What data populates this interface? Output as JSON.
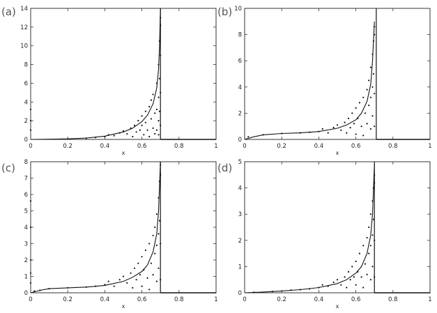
{
  "chart_data": [
    {
      "type": "scatter",
      "panel_label": "(a)",
      "xlabel": "x",
      "ylabel": "",
      "xlim": [
        0,
        1
      ],
      "ylim": [
        0,
        14
      ],
      "x_ticks": [
        "0",
        "0.2",
        "0.4",
        "0.6",
        "0.8",
        "1"
      ],
      "y_ticks": [
        "0",
        "2",
        "4",
        "6",
        "8",
        "10",
        "12",
        "14"
      ],
      "curve": {
        "x": [
          0,
          0.1,
          0.2,
          0.3,
          0.4,
          0.5,
          0.55,
          0.6,
          0.63,
          0.66,
          0.68,
          0.69,
          0.695,
          0.7
        ],
        "y": [
          0,
          0.02,
          0.06,
          0.15,
          0.35,
          0.8,
          1.2,
          1.9,
          2.6,
          3.8,
          5.5,
          7.5,
          10,
          14
        ]
      },
      "scatter_points": [
        [
          0.0,
          3.2
        ],
        [
          0.0,
          2.0
        ],
        [
          0.0,
          1.0
        ],
        [
          0.2,
          0.05
        ],
        [
          0.3,
          0.12
        ],
        [
          0.35,
          0.2
        ],
        [
          0.4,
          0.3
        ],
        [
          0.42,
          0.5
        ],
        [
          0.45,
          0.4
        ],
        [
          0.48,
          0.7
        ],
        [
          0.5,
          0.9
        ],
        [
          0.52,
          0.6
        ],
        [
          0.54,
          1.2
        ],
        [
          0.55,
          0.3
        ],
        [
          0.56,
          1.5
        ],
        [
          0.57,
          0.8
        ],
        [
          0.58,
          2.0
        ],
        [
          0.59,
          1.0
        ],
        [
          0.6,
          2.5
        ],
        [
          0.6,
          1.5
        ],
        [
          0.61,
          0.5
        ],
        [
          0.62,
          3.0
        ],
        [
          0.62,
          1.8
        ],
        [
          0.63,
          1.0
        ],
        [
          0.64,
          3.5
        ],
        [
          0.64,
          0.3
        ],
        [
          0.65,
          2.2
        ],
        [
          0.65,
          4.2
        ],
        [
          0.66,
          1.2
        ],
        [
          0.66,
          4.8
        ],
        [
          0.67,
          2.8
        ],
        [
          0.67,
          0.6
        ],
        [
          0.68,
          6.0
        ],
        [
          0.68,
          3.2
        ],
        [
          0.68,
          1.0
        ],
        [
          0.69,
          8.0
        ],
        [
          0.69,
          4.5
        ],
        [
          0.69,
          2.0
        ],
        [
          0.69,
          0.5
        ],
        [
          0.695,
          10.5
        ],
        [
          0.695,
          6.5
        ],
        [
          0.695,
          3.0
        ],
        [
          0.7,
          13.0
        ],
        [
          0.7,
          12.2
        ],
        [
          0.7,
          9.0
        ],
        [
          0.7,
          5.0
        ],
        [
          0.7,
          1.5
        ]
      ],
      "vertical_line_x": 0.7
    },
    {
      "type": "scatter",
      "panel_label": "(b)",
      "xlabel": "x",
      "ylabel": "",
      "xlim": [
        0,
        1
      ],
      "ylim": [
        0,
        10
      ],
      "x_ticks": [
        "0",
        "0.2",
        "0.4",
        "0.6",
        "0.8",
        "1"
      ],
      "y_ticks": [
        "0",
        "2",
        "4",
        "6",
        "8",
        "10"
      ],
      "curve": {
        "x": [
          0,
          0.05,
          0.1,
          0.2,
          0.3,
          0.4,
          0.5,
          0.55,
          0.6,
          0.63,
          0.66,
          0.68,
          0.69,
          0.7
        ],
        "y": [
          0,
          0.2,
          0.35,
          0.45,
          0.5,
          0.6,
          0.85,
          1.1,
          1.5,
          2.0,
          2.9,
          4.2,
          6.0,
          9.0
        ]
      },
      "scatter_points": [
        [
          0.02,
          0.2
        ],
        [
          0.1,
          0.35
        ],
        [
          0.2,
          0.45
        ],
        [
          0.3,
          0.5
        ],
        [
          0.35,
          0.55
        ],
        [
          0.4,
          0.6
        ],
        [
          0.42,
          0.8
        ],
        [
          0.45,
          0.5
        ],
        [
          0.48,
          0.9
        ],
        [
          0.5,
          1.1
        ],
        [
          0.52,
          0.7
        ],
        [
          0.54,
          1.3
        ],
        [
          0.55,
          0.5
        ],
        [
          0.56,
          1.6
        ],
        [
          0.57,
          0.9
        ],
        [
          0.58,
          2.0
        ],
        [
          0.59,
          1.2
        ],
        [
          0.6,
          2.4
        ],
        [
          0.6,
          0.4
        ],
        [
          0.61,
          1.6
        ],
        [
          0.62,
          2.8
        ],
        [
          0.63,
          1.0
        ],
        [
          0.64,
          3.2
        ],
        [
          0.64,
          0.3
        ],
        [
          0.65,
          2.0
        ],
        [
          0.66,
          3.8
        ],
        [
          0.66,
          1.2
        ],
        [
          0.67,
          4.5
        ],
        [
          0.67,
          2.6
        ],
        [
          0.68,
          5.5
        ],
        [
          0.68,
          3.2
        ],
        [
          0.68,
          0.8
        ],
        [
          0.69,
          6.5
        ],
        [
          0.69,
          4.0
        ],
        [
          0.69,
          1.8
        ],
        [
          0.695,
          7.5
        ],
        [
          0.695,
          5.0
        ],
        [
          0.7,
          8.6
        ],
        [
          0.7,
          8.0
        ],
        [
          0.7,
          3.5
        ],
        [
          0.7,
          1.0
        ]
      ],
      "vertical_line_x": 0.71
    },
    {
      "type": "scatter",
      "panel_label": "(c)",
      "xlabel": "x",
      "ylabel": "",
      "xlim": [
        0,
        1
      ],
      "ylim": [
        0,
        8
      ],
      "x_ticks": [
        "0",
        "0.2",
        "0.4",
        "0.6",
        "0.8",
        "1"
      ],
      "y_ticks": [
        "0",
        "1",
        "2",
        "3",
        "4",
        "5",
        "6",
        "7",
        "8"
      ],
      "curve": {
        "x": [
          0,
          0.05,
          0.1,
          0.2,
          0.3,
          0.4,
          0.5,
          0.55,
          0.6,
          0.63,
          0.66,
          0.68,
          0.69,
          0.7
        ],
        "y": [
          0,
          0.15,
          0.25,
          0.3,
          0.35,
          0.45,
          0.7,
          0.95,
          1.3,
          1.7,
          2.5,
          3.6,
          5.0,
          8.0
        ]
      },
      "scatter_points": [
        [
          0.0,
          5.6
        ],
        [
          0.0,
          4.0
        ],
        [
          0.0,
          2.0
        ],
        [
          0.0,
          1.2
        ],
        [
          0.0,
          0.6
        ],
        [
          0.02,
          0.1
        ],
        [
          0.05,
          0.15
        ],
        [
          0.1,
          0.25
        ],
        [
          0.2,
          0.3
        ],
        [
          0.3,
          0.35
        ],
        [
          0.35,
          0.4
        ],
        [
          0.4,
          0.5
        ],
        [
          0.42,
          0.7
        ],
        [
          0.45,
          0.4
        ],
        [
          0.48,
          0.8
        ],
        [
          0.5,
          1.0
        ],
        [
          0.52,
          0.6
        ],
        [
          0.54,
          1.2
        ],
        [
          0.55,
          0.3
        ],
        [
          0.56,
          1.5
        ],
        [
          0.57,
          0.8
        ],
        [
          0.58,
          1.8
        ],
        [
          0.59,
          1.1
        ],
        [
          0.6,
          2.2
        ],
        [
          0.6,
          0.4
        ],
        [
          0.61,
          1.4
        ],
        [
          0.62,
          2.6
        ],
        [
          0.63,
          0.9
        ],
        [
          0.64,
          3.0
        ],
        [
          0.64,
          0.2
        ],
        [
          0.65,
          1.8
        ],
        [
          0.66,
          3.5
        ],
        [
          0.66,
          1.1
        ],
        [
          0.67,
          4.0
        ],
        [
          0.67,
          2.4
        ],
        [
          0.68,
          4.8
        ],
        [
          0.68,
          2.9
        ],
        [
          0.68,
          0.7
        ],
        [
          0.69,
          5.8
        ],
        [
          0.69,
          3.6
        ],
        [
          0.69,
          1.5
        ],
        [
          0.695,
          6.8
        ],
        [
          0.695,
          4.4
        ],
        [
          0.7,
          7.8
        ],
        [
          0.7,
          7.2
        ],
        [
          0.7,
          3.0
        ],
        [
          0.7,
          0.8
        ]
      ],
      "vertical_line_x": 0.7
    },
    {
      "type": "scatter",
      "panel_label": "(d)",
      "xlabel": "x",
      "ylabel": "",
      "xlim": [
        0,
        1
      ],
      "ylim": [
        0,
        5
      ],
      "x_ticks": [
        "0",
        "0.2",
        "0.4",
        "0.6",
        "0.8",
        "1"
      ],
      "y_ticks": [
        "0",
        "1",
        "2",
        "3",
        "4",
        "5"
      ],
      "curve": {
        "x": [
          0,
          0.1,
          0.2,
          0.3,
          0.4,
          0.5,
          0.55,
          0.6,
          0.63,
          0.66,
          0.68,
          0.69,
          0.7
        ],
        "y": [
          0,
          0.03,
          0.07,
          0.12,
          0.2,
          0.35,
          0.5,
          0.75,
          1.0,
          1.5,
          2.2,
          3.0,
          4.9
        ]
      },
      "scatter_points": [
        [
          0.05,
          0.02
        ],
        [
          0.15,
          0.05
        ],
        [
          0.25,
          0.1
        ],
        [
          0.3,
          0.12
        ],
        [
          0.35,
          0.15
        ],
        [
          0.4,
          0.2
        ],
        [
          0.42,
          0.3
        ],
        [
          0.45,
          0.25
        ],
        [
          0.48,
          0.4
        ],
        [
          0.5,
          0.5
        ],
        [
          0.52,
          0.3
        ],
        [
          0.54,
          0.6
        ],
        [
          0.55,
          0.2
        ],
        [
          0.56,
          0.8
        ],
        [
          0.57,
          0.5
        ],
        [
          0.58,
          1.0
        ],
        [
          0.59,
          0.6
        ],
        [
          0.6,
          1.2
        ],
        [
          0.6,
          0.3
        ],
        [
          0.61,
          0.8
        ],
        [
          0.62,
          1.5
        ],
        [
          0.63,
          0.6
        ],
        [
          0.64,
          1.8
        ],
        [
          0.64,
          0.2
        ],
        [
          0.65,
          1.1
        ],
        [
          0.66,
          2.1
        ],
        [
          0.66,
          0.7
        ],
        [
          0.67,
          2.5
        ],
        [
          0.67,
          1.5
        ],
        [
          0.68,
          3.0
        ],
        [
          0.68,
          1.8
        ],
        [
          0.68,
          0.5
        ],
        [
          0.69,
          3.5
        ],
        [
          0.69,
          2.2
        ],
        [
          0.69,
          1.0
        ],
        [
          0.695,
          4.0
        ],
        [
          0.695,
          2.8
        ],
        [
          0.7,
          4.5
        ],
        [
          0.7,
          4.2
        ],
        [
          0.7,
          2.0
        ],
        [
          0.7,
          0.6
        ]
      ],
      "vertical_line_x": 0.7
    }
  ]
}
